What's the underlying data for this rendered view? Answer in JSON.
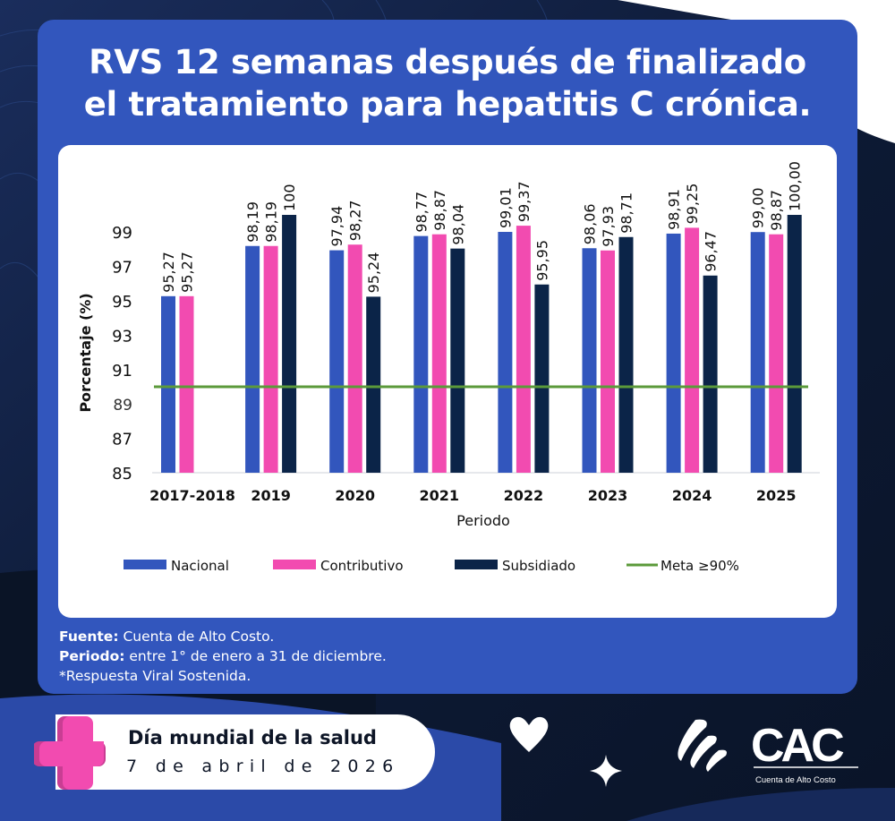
{
  "header": {
    "title_line1": "RVS 12 semanas después de finalizado",
    "title_line2": "el tratamiento para hepatitis C crónica."
  },
  "colors": {
    "nacional": "#3256bd",
    "contributivo": "#f24bb0",
    "subsidiado": "#0b2448",
    "meta": "#5b9a3a",
    "card": "#3256bd",
    "background_dark": "#0b1830"
  },
  "chart_data": {
    "type": "bar",
    "title": "RVS 12 semanas después de finalizado el tratamiento para hepatitis C crónica.",
    "xlabel": "Periodo",
    "ylabel": "Porcentaje (%)",
    "ylim": [
      85,
      100
    ],
    "yticks": [
      "85",
      "87",
      "89",
      "91",
      "93",
      "95",
      "97",
      "99"
    ],
    "ytick_values": [
      85,
      87,
      89,
      91,
      93,
      95,
      97,
      99
    ],
    "grid": false,
    "legend_position": "bottom",
    "categories": [
      "2017-2018",
      "2019",
      "2020",
      "2021",
      "2022",
      "2023",
      "2024",
      "2025"
    ],
    "series": [
      {
        "name": "Nacional",
        "values": [
          95.27,
          98.19,
          97.94,
          98.77,
          99.01,
          98.06,
          98.91,
          99.0
        ],
        "labels": [
          "95,27",
          "98,19",
          "97,94",
          "98,77",
          "99,01",
          "98,06",
          "98,91",
          "99,00"
        ]
      },
      {
        "name": "Contributivo",
        "values": [
          95.27,
          98.19,
          98.27,
          98.87,
          99.37,
          97.93,
          99.25,
          98.87
        ],
        "labels": [
          "95,27",
          "98,19",
          "98,27",
          "98,87",
          "99,37",
          "97,93",
          "99,25",
          "98,87"
        ]
      },
      {
        "name": "Subsidiado",
        "values": [
          null,
          100,
          95.24,
          98.04,
          95.95,
          98.71,
          96.47,
          100.0
        ],
        "labels": [
          null,
          "100",
          "95,24",
          "98,04",
          "95,95",
          "98,71",
          "96,47",
          "100,00"
        ]
      }
    ],
    "reference_line": {
      "name": "Meta ≥90%",
      "value": 90
    },
    "legend": [
      "Nacional",
      "Contributivo",
      "Subsidiado",
      "Meta ≥90%"
    ]
  },
  "notes": {
    "fuente_label": "Fuente:",
    "fuente_text": " Cuenta de Alto Costo.",
    "periodo_label": "Periodo:",
    "periodo_text": " entre 1° de enero a 31 de diciembre.",
    "footnote": "*Respuesta Viral Sostenida."
  },
  "badge": {
    "line1": "Día mundial de la salud",
    "line2": "7 de abril de 2026"
  },
  "logo": {
    "wordmark": "CAC",
    "subtitle": "Cuenta de Alto Costo"
  }
}
